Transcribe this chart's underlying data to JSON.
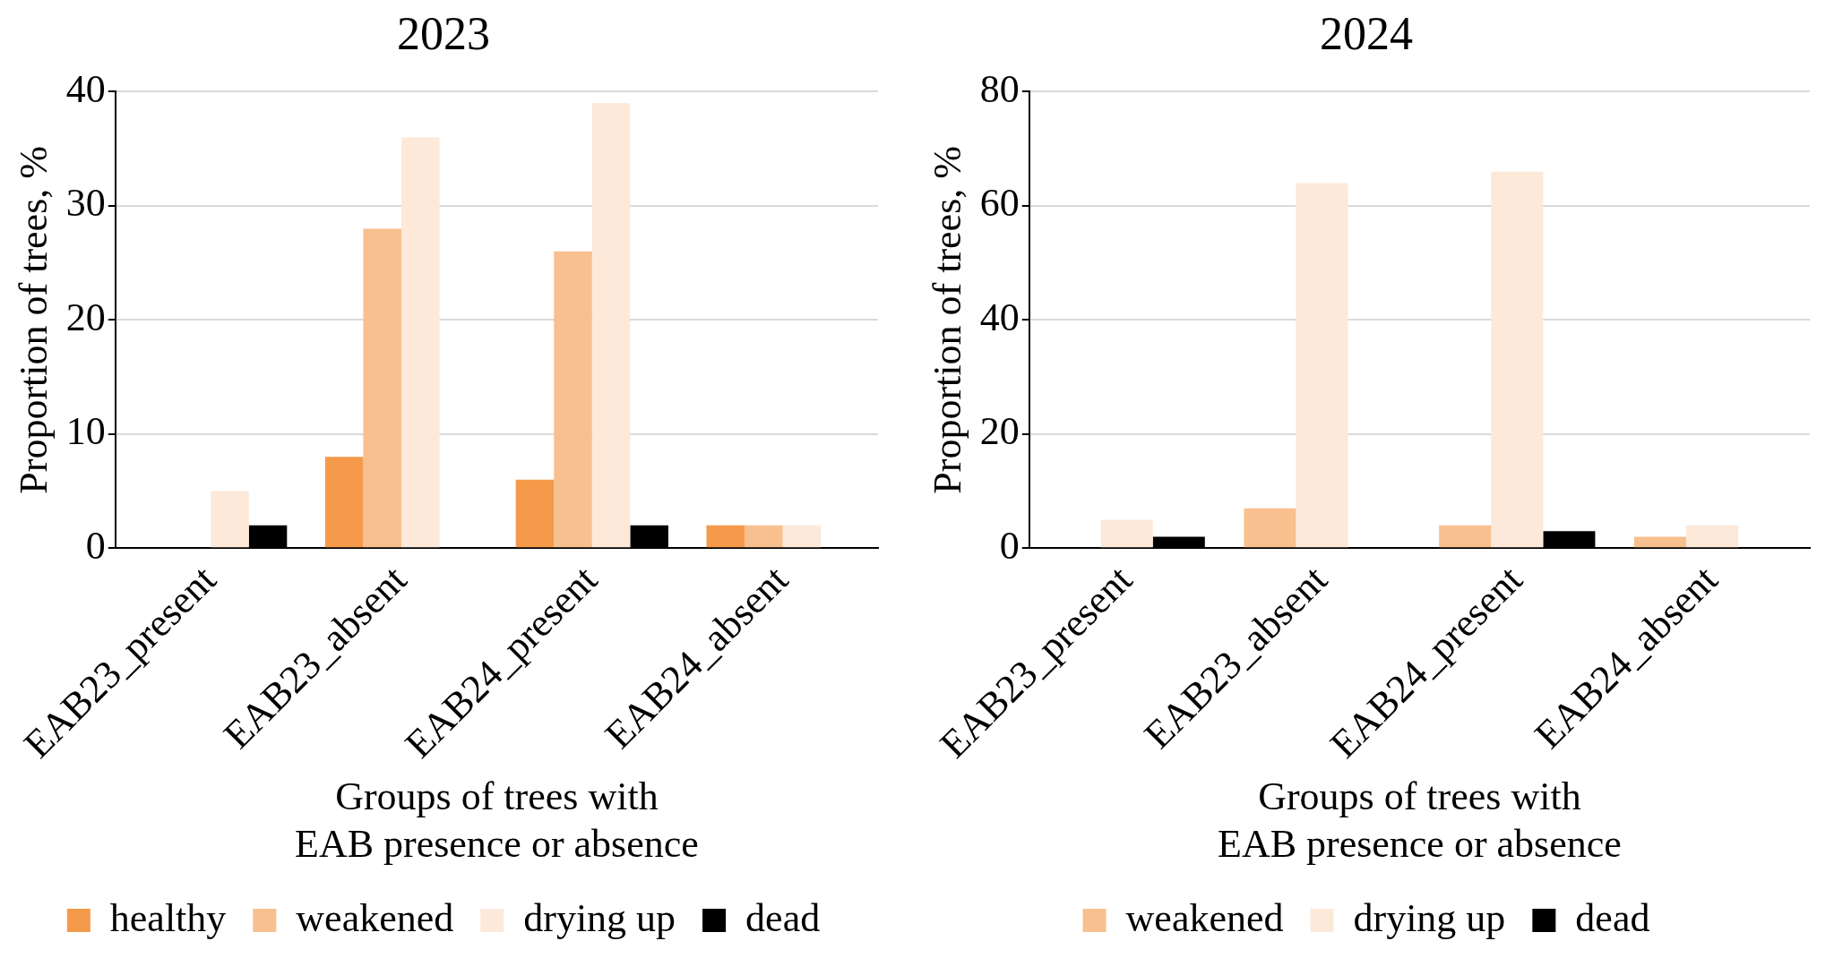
{
  "chart_data": [
    {
      "type": "bar",
      "title": "2023",
      "xlabel": "Groups of trees with EAB presence or absence",
      "ylabel": "Proportion of trees, %",
      "categories": [
        "EAB23_present",
        "EAB23_absent",
        "EAB24_present",
        "EAB24_absent"
      ],
      "series": [
        {
          "name": "healthy",
          "color": "#f59a4b",
          "values": [
            null,
            8,
            6,
            2
          ]
        },
        {
          "name": "weakened",
          "color": "#f8c08f",
          "values": [
            null,
            28,
            26,
            2
          ]
        },
        {
          "name": "drying up",
          "color": "#fde9d9",
          "values": [
            5,
            36,
            39,
            2
          ]
        },
        {
          "name": "dead",
          "color": "#000000",
          "values": [
            2,
            null,
            2,
            null
          ]
        }
      ],
      "ylim": [
        0,
        40
      ],
      "yticks": [
        0,
        10,
        20,
        30,
        40
      ],
      "grid": "y",
      "legend": "bottom"
    },
    {
      "type": "bar",
      "title": "2024",
      "xlabel": "Groups of trees with EAB presence or absence",
      "ylabel": "Proportion of trees, %",
      "categories": [
        "EAB23_present",
        "EAB23_absent",
        "EAB24_present",
        "EAB24_absent"
      ],
      "series": [
        {
          "name": "weakened",
          "color": "#f8c08f",
          "values": [
            null,
            7,
            4,
            2
          ]
        },
        {
          "name": "drying up",
          "color": "#fde9d9",
          "values": [
            5,
            64,
            66,
            4
          ]
        },
        {
          "name": "dead",
          "color": "#000000",
          "values": [
            2,
            null,
            3,
            null
          ]
        }
      ],
      "ylim": [
        0,
        80
      ],
      "yticks": [
        0,
        20,
        40,
        60,
        80
      ],
      "grid": "y",
      "legend": "bottom"
    }
  ]
}
